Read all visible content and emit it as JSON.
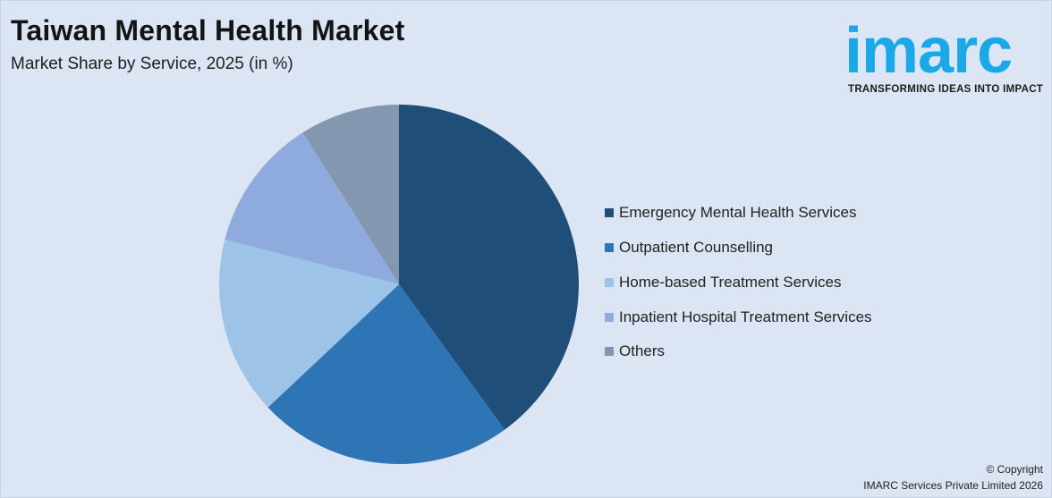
{
  "header": {
    "title": "Taiwan Mental Health Market",
    "subtitle": "Market Share by Service, 2025 (in %)"
  },
  "logo": {
    "wordmark": "imarc",
    "tagline": "TRANSFORMING IDEAS INTO IMPACT",
    "color": "#1aa8e8"
  },
  "chart_data": {
    "type": "pie",
    "categories": [
      "Emergency Mental Health Services",
      "Outpatient Counselling",
      "Home-based Treatment Services",
      "Inpatient Hospital Treatment Services",
      "Others"
    ],
    "values": [
      40,
      23,
      16,
      12,
      9
    ],
    "colors": [
      "#1f4e79",
      "#2e75b6",
      "#9dc3e6",
      "#8faadc",
      "#8497b0"
    ],
    "start_angle": "12 o'clock",
    "direction": "clockwise",
    "legend_position": "right"
  },
  "footer": {
    "copyright_line1": "© Copyright",
    "copyright_line2": "IMARC Services Private Limited 2026"
  }
}
